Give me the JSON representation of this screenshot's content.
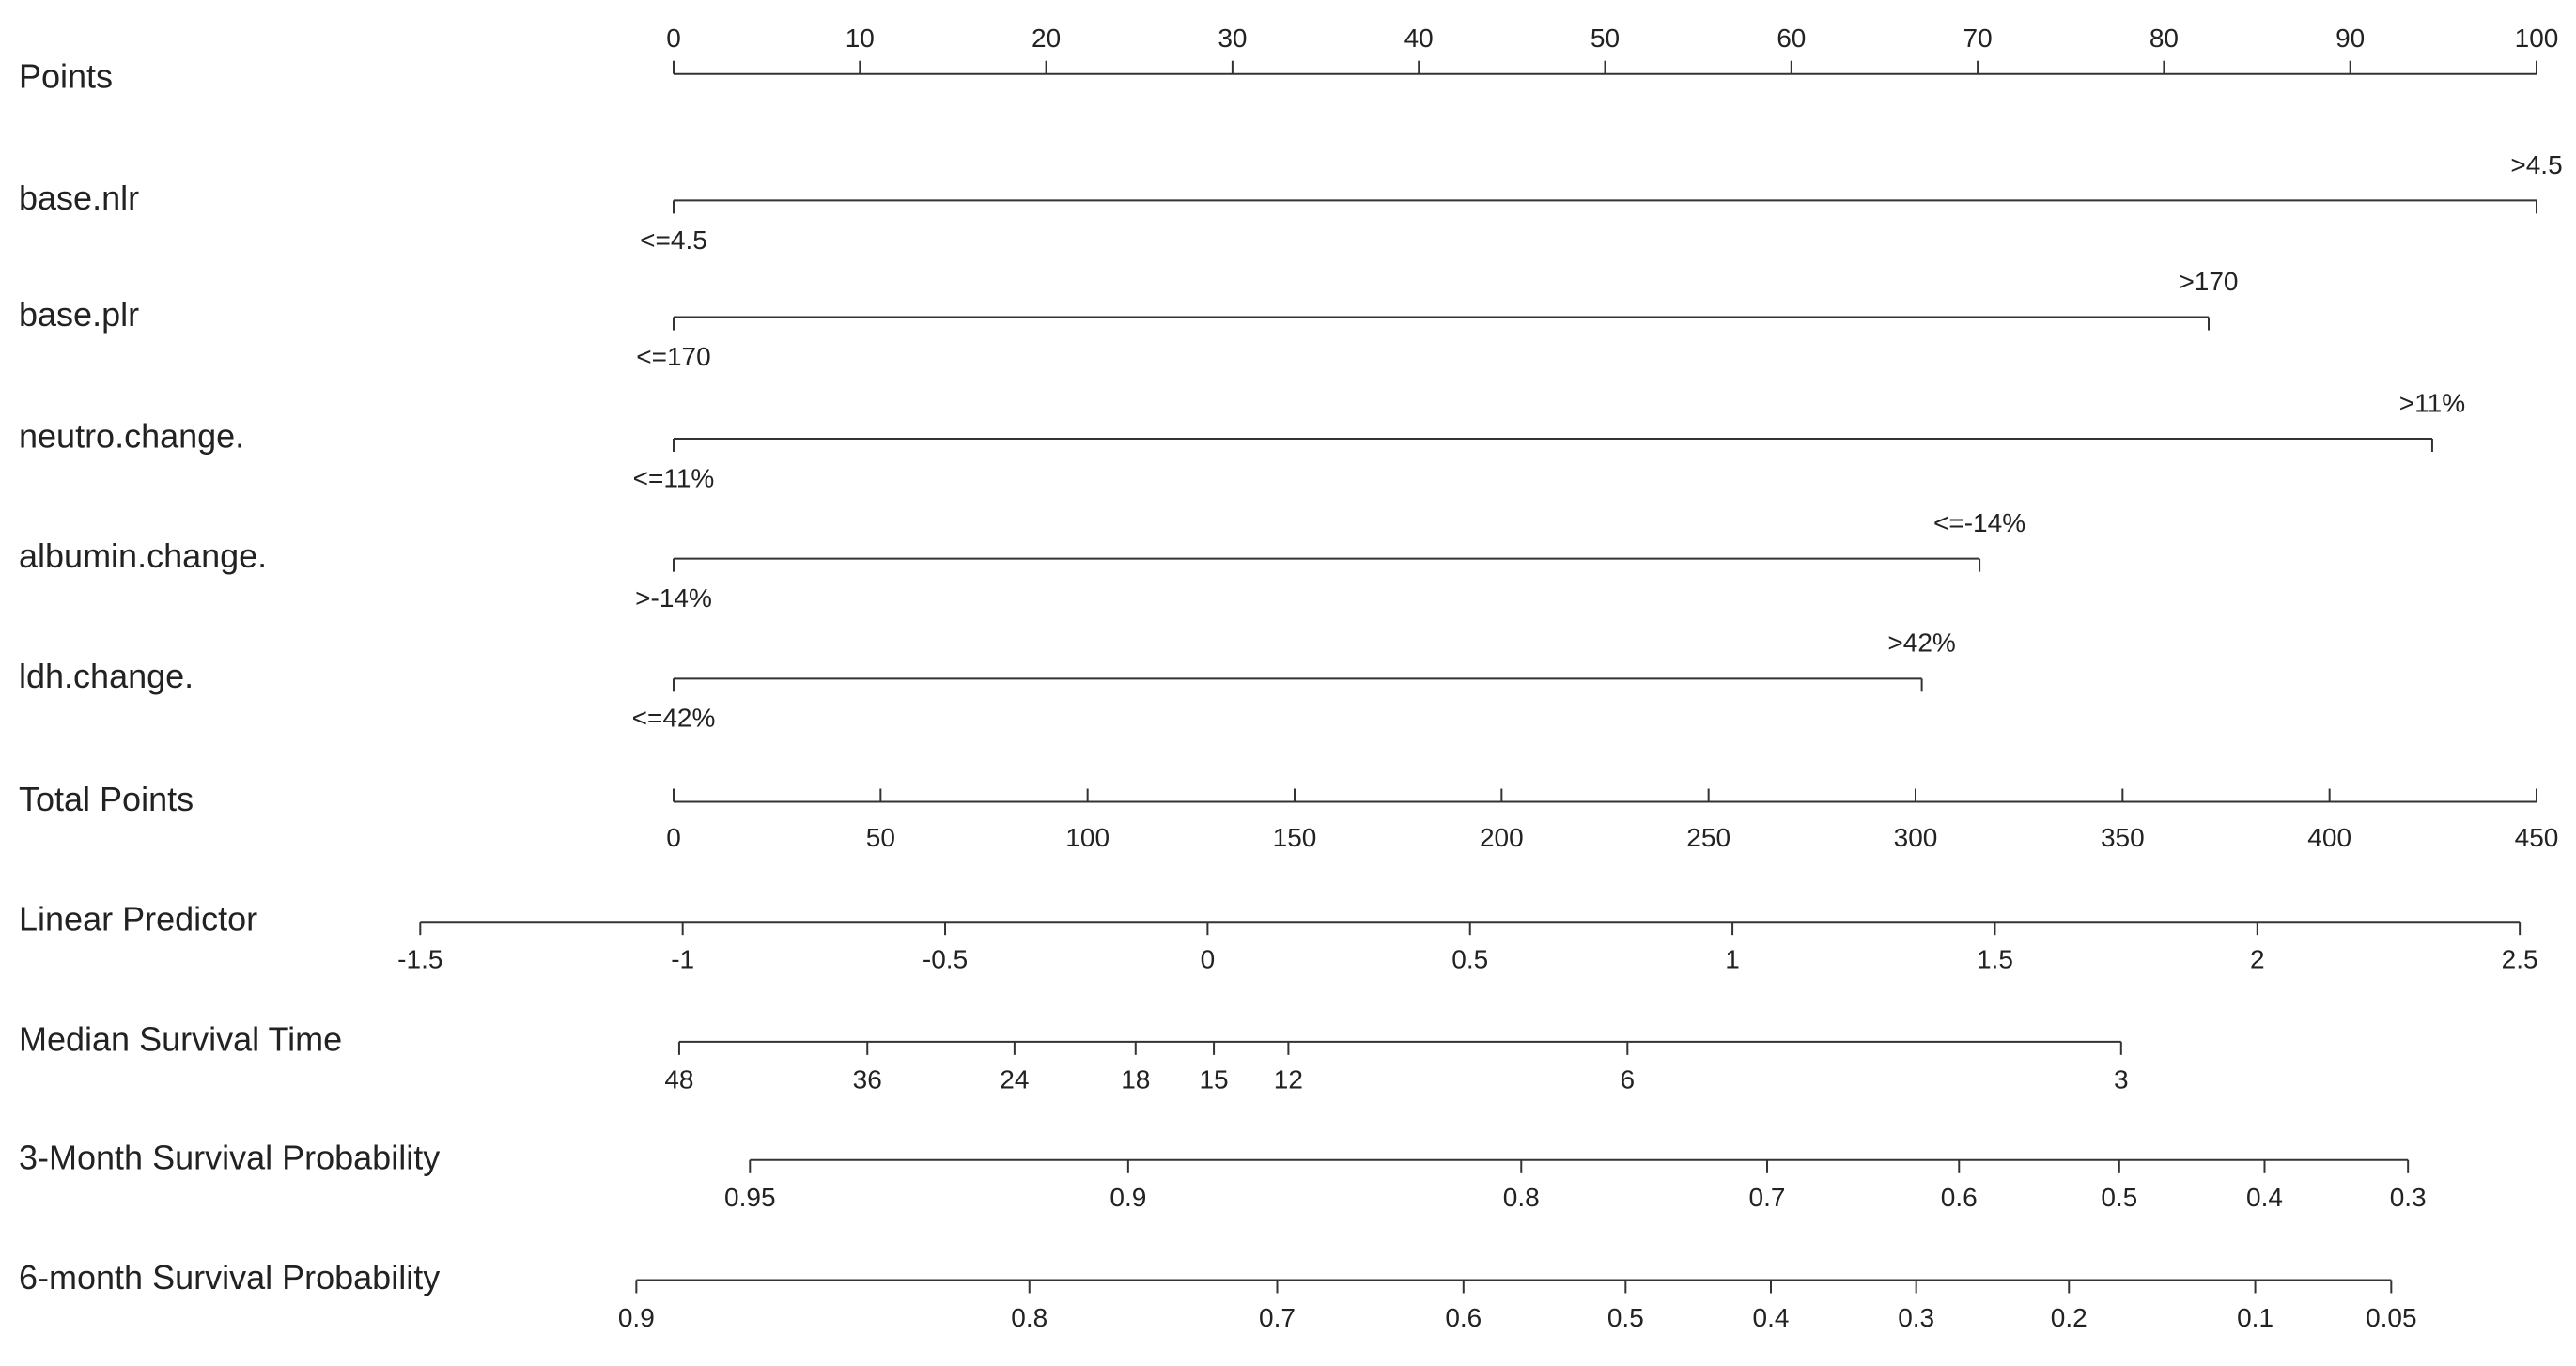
{
  "chart_data": {
    "type": "nomogram",
    "points_axis": {
      "label": "Points",
      "xlim": [
        0,
        100
      ],
      "xticks": [
        0,
        10,
        20,
        30,
        40,
        50,
        60,
        70,
        80,
        90,
        100
      ]
    },
    "variables": [
      {
        "label": "base.nlr",
        "levels": [
          {
            "label": "<=4.5",
            "points": 0
          },
          {
            "label": ">4.5",
            "points": 100
          }
        ]
      },
      {
        "label": "base.plr",
        "levels": [
          {
            "label": "<=170",
            "points": 0
          },
          {
            "label": ">170",
            "points": 82.4
          }
        ]
      },
      {
        "label": "neutro.change.",
        "levels": [
          {
            "label": "<=11%",
            "points": 0
          },
          {
            "label": ">11%",
            "points": 94.4
          }
        ]
      },
      {
        "label": "albumin.change.",
        "levels": [
          {
            "label": ">-14%",
            "points": 0
          },
          {
            "label": "<=-14%",
            "points": 70.1
          }
        ]
      },
      {
        "label": "ldh.change.",
        "levels": [
          {
            "label": "<=42%",
            "points": 0
          },
          {
            "label": ">42%",
            "points": 67.0
          }
        ]
      }
    ],
    "total_points": {
      "label": "Total Points",
      "xlim": [
        0,
        450
      ],
      "xticks": [
        0,
        50,
        100,
        150,
        200,
        250,
        300,
        350,
        400,
        450
      ]
    },
    "linear_predictor": {
      "label": "Linear Predictor",
      "xlim": [
        -1.5,
        2.5
      ],
      "points": [
        -13.6,
        99.1
      ],
      "xticks": [
        -1.5,
        -1,
        -0.5,
        0,
        0.5,
        1,
        1.5,
        2,
        2.5
      ]
    },
    "outcomes": [
      {
        "label": "Median Survival Time",
        "ticks": [
          48,
          36,
          24,
          18,
          15,
          12,
          6,
          3
        ],
        "points": [
          0.3,
          10.4,
          18.3,
          24.8,
          29.0,
          33.0,
          51.2,
          77.7
        ]
      },
      {
        "label": "3-Month Survival Probability",
        "ticks": [
          0.95,
          0.9,
          0.8,
          0.7,
          0.6,
          0.5,
          0.4,
          0.3
        ],
        "points": [
          4.1,
          24.4,
          45.5,
          58.7,
          69.0,
          77.6,
          85.4,
          93.1
        ]
      },
      {
        "label": "6-month Survival Probability",
        "ticks": [
          0.9,
          0.8,
          0.7,
          0.6,
          0.5,
          0.4,
          0.3,
          0.2,
          0.1,
          0.05
        ],
        "points": [
          -2.0,
          19.1,
          32.4,
          42.4,
          51.1,
          58.9,
          66.7,
          74.9,
          84.9,
          92.2
        ]
      }
    ]
  }
}
